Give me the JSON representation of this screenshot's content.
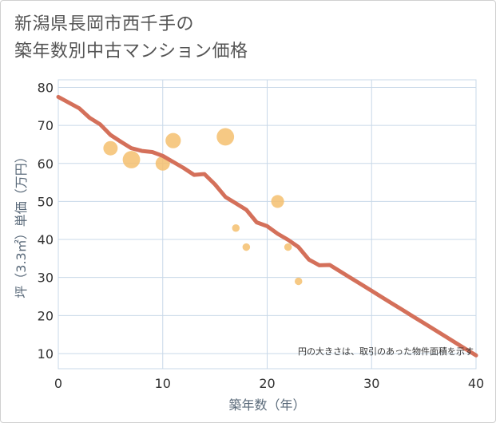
{
  "header": {
    "title_line1": "新潟県長岡市西千手の",
    "title_line2": "築年数別中古マンション価格"
  },
  "colors": {
    "line": "#d4705a",
    "bubble": "#f5bf6e",
    "grid": "#c8d8e8",
    "axis_text": "#5a6a7a"
  },
  "chart_data": {
    "type": "scatter",
    "xlabel": "築年数（年）",
    "ylabel": "坪（3.3㎡）単価（万円）",
    "xlim": [
      0,
      40
    ],
    "ylim": [
      6,
      82
    ],
    "xticks": [
      0,
      10,
      20,
      30,
      40
    ],
    "yticks": [
      10,
      20,
      30,
      40,
      50,
      60,
      70,
      80
    ],
    "note": "円の大きさは、取引のあった物件面積を示す",
    "bubbles": [
      {
        "x": 5,
        "y": 64,
        "size": 2
      },
      {
        "x": 7,
        "y": 61,
        "size": 3
      },
      {
        "x": 10,
        "y": 60,
        "size": 2
      },
      {
        "x": 11,
        "y": 66,
        "size": 2.3
      },
      {
        "x": 16,
        "y": 67,
        "size": 3
      },
      {
        "x": 17,
        "y": 43,
        "size": 0.5
      },
      {
        "x": 18,
        "y": 38,
        "size": 0.5
      },
      {
        "x": 21,
        "y": 50,
        "size": 1.6
      },
      {
        "x": 22,
        "y": 38,
        "size": 0.5
      },
      {
        "x": 23,
        "y": 29,
        "size": 0.5
      }
    ],
    "trend_line": {
      "x": [
        0,
        1,
        2,
        3,
        4,
        5,
        6,
        7,
        8,
        9,
        10,
        11,
        12,
        13,
        14,
        15,
        16,
        17,
        18,
        19,
        20,
        21,
        22,
        23,
        24,
        25,
        26,
        27,
        28,
        29,
        30,
        31,
        32,
        33,
        34,
        35,
        36,
        37,
        38,
        39,
        40
      ],
      "y": [
        77.5,
        76,
        74.5,
        72,
        70.3,
        67.5,
        65.7,
        64,
        63.3,
        63,
        62,
        60.4,
        58.8,
        57,
        57.2,
        54.5,
        51.2,
        49.5,
        47.8,
        44.5,
        43.5,
        41.5,
        39.9,
        38,
        34.7,
        33.2,
        33.3,
        31.6,
        29.9,
        28.2,
        26.5,
        24.8,
        23.1,
        21.4,
        19.7,
        18,
        16.3,
        14.6,
        12.9,
        11.2,
        9.5
      ]
    }
  }
}
